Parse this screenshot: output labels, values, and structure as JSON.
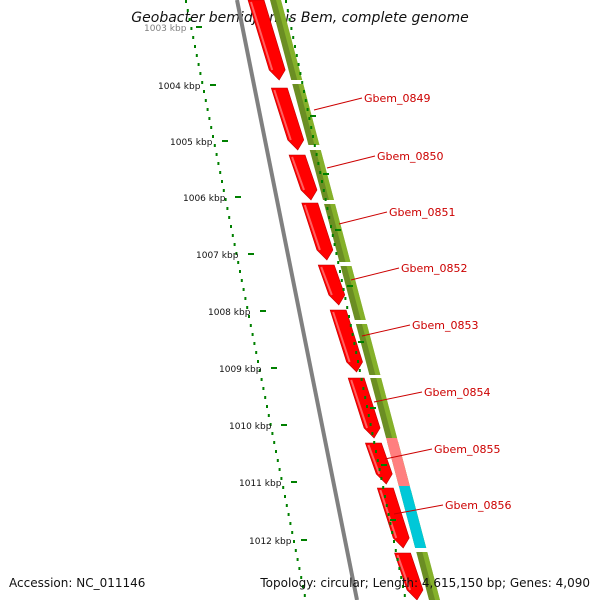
{
  "title": "Geobacter bemidjiensis Bem, complete genome",
  "footer": {
    "accession": "Accession: NC_011146",
    "summary": "Topology: circular; Length: 4,615,150 bp; Genes: 4,090"
  },
  "kbp_ticks": [
    "1003 kbp",
    "1004 kbp",
    "1005 kbp",
    "1006 kbp",
    "1007 kbp",
    "1008 kbp",
    "1009 kbp",
    "1010 kbp",
    "1011 kbp",
    "1012 kbp"
  ],
  "gene_labels": [
    "Gbem_0849",
    "Gbem_0850",
    "Gbem_0851",
    "Gbem_0852",
    "Gbem_0853",
    "Gbem_0854",
    "Gbem_0855",
    "Gbem_0856"
  ],
  "colors": {
    "cds": "#ff0000",
    "cds_highlight": "#c00000",
    "gc_track": "#6b8e23",
    "gc_track_light": "#9acd32",
    "pink_segment": "#ff7f7f",
    "cyan_segment": "#00c8d8",
    "backbone": "#808080",
    "tick_color": "#008000",
    "label_color": "#cc0000"
  }
}
